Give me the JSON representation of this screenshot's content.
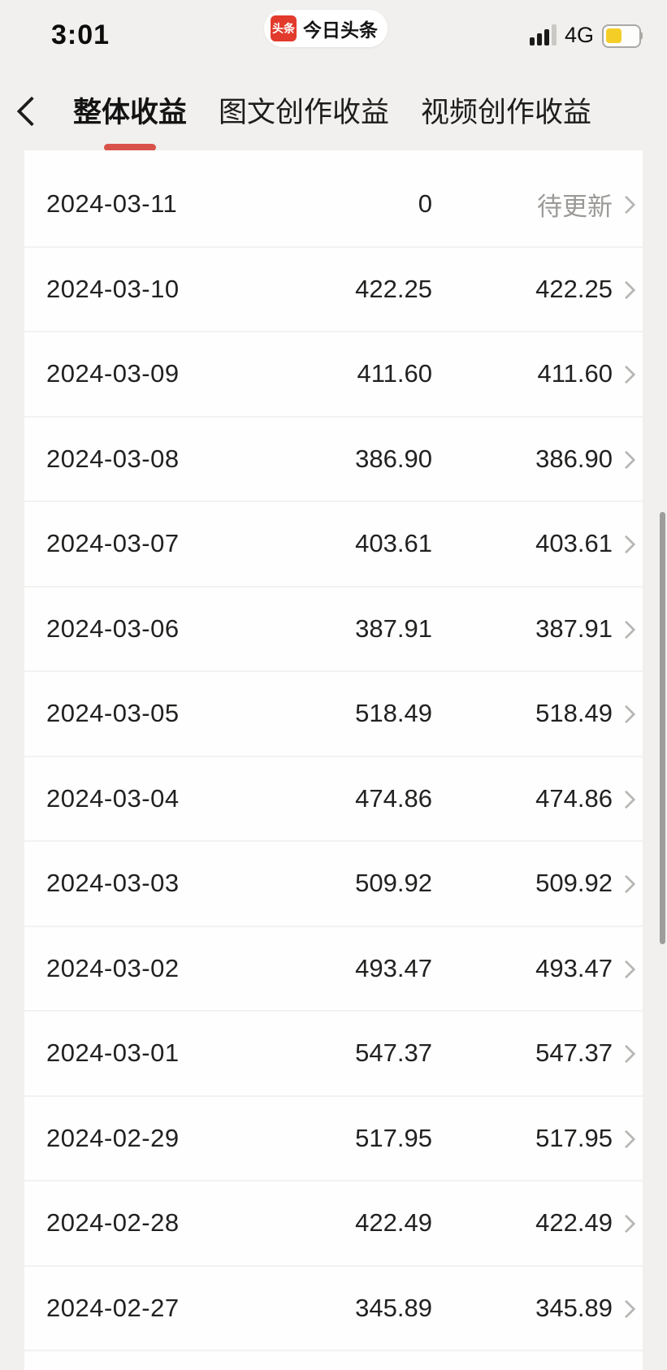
{
  "status_bar": {
    "time": "3:01",
    "app_badge": {
      "logo_text": "头条",
      "app_name": "今日头条"
    },
    "network_label": "4G"
  },
  "tab_bar": {
    "tabs": [
      {
        "label": "整体收益",
        "active": true
      },
      {
        "label": "图文创作收益",
        "active": false
      },
      {
        "label": "视频创作收益",
        "active": false
      }
    ]
  },
  "colors": {
    "accent_red": "#d9524a",
    "badge_red": "#e23a2c",
    "battery_yellow": "#f4cd27",
    "pending_gray": "#9b9a97"
  },
  "table": {
    "rows": [
      {
        "date": "2024-03-11",
        "amount": "0",
        "settled": "待更新",
        "pending": true
      },
      {
        "date": "2024-03-10",
        "amount": "422.25",
        "settled": "422.25",
        "pending": false
      },
      {
        "date": "2024-03-09",
        "amount": "411.60",
        "settled": "411.60",
        "pending": false
      },
      {
        "date": "2024-03-08",
        "amount": "386.90",
        "settled": "386.90",
        "pending": false
      },
      {
        "date": "2024-03-07",
        "amount": "403.61",
        "settled": "403.61",
        "pending": false
      },
      {
        "date": "2024-03-06",
        "amount": "387.91",
        "settled": "387.91",
        "pending": false
      },
      {
        "date": "2024-03-05",
        "amount": "518.49",
        "settled": "518.49",
        "pending": false
      },
      {
        "date": "2024-03-04",
        "amount": "474.86",
        "settled": "474.86",
        "pending": false
      },
      {
        "date": "2024-03-03",
        "amount": "509.92",
        "settled": "509.92",
        "pending": false
      },
      {
        "date": "2024-03-02",
        "amount": "493.47",
        "settled": "493.47",
        "pending": false
      },
      {
        "date": "2024-03-01",
        "amount": "547.37",
        "settled": "547.37",
        "pending": false
      },
      {
        "date": "2024-02-29",
        "amount": "517.95",
        "settled": "517.95",
        "pending": false
      },
      {
        "date": "2024-02-28",
        "amount": "422.49",
        "settled": "422.49",
        "pending": false
      },
      {
        "date": "2024-02-27",
        "amount": "345.89",
        "settled": "345.89",
        "pending": false
      }
    ]
  }
}
